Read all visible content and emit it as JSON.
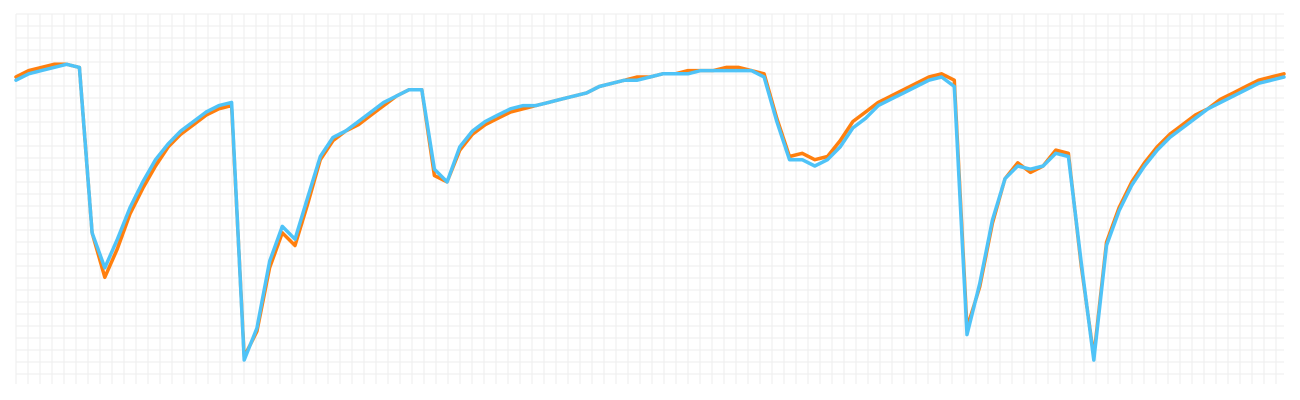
{
  "chart_data": {
    "type": "line",
    "grid": true,
    "legend": "none",
    "xlabel": "",
    "ylabel": "",
    "x": [
      0,
      1,
      2,
      3,
      4,
      5,
      6,
      7,
      8,
      9,
      10,
      11,
      12,
      13,
      14,
      15,
      16,
      17,
      18,
      19,
      20,
      21,
      22,
      23,
      24,
      25,
      26,
      27,
      28,
      29,
      30,
      31,
      32,
      33,
      34,
      35,
      36,
      37,
      38,
      39,
      40,
      41,
      42,
      43,
      44,
      45,
      46,
      47,
      48,
      49,
      50,
      51,
      52,
      53,
      54,
      55,
      56,
      57,
      58,
      59,
      60,
      61,
      62,
      63,
      64,
      65,
      66,
      67,
      68,
      69,
      70,
      71,
      72,
      73,
      74,
      75,
      76,
      77,
      78,
      79,
      80,
      81,
      82,
      83,
      84,
      85,
      86,
      87,
      88,
      89,
      90,
      91,
      92,
      93,
      94,
      95,
      96,
      97,
      98,
      99,
      100
    ],
    "xlim": [
      0,
      100
    ],
    "ylim": [
      0,
      100
    ],
    "series": [
      {
        "color": "#ff7f0e",
        "values": [
          89,
          91,
          92,
          93,
          93,
          92,
          40,
          26,
          35,
          46,
          54,
          61,
          67,
          71,
          74,
          77,
          79,
          80,
          1,
          9,
          29,
          40,
          36,
          49,
          63,
          69,
          72,
          74,
          77,
          80,
          83,
          85,
          85,
          58,
          56,
          66,
          71,
          74,
          76,
          78,
          79,
          80,
          81,
          82,
          83,
          84,
          86,
          87,
          88,
          89,
          89,
          90,
          90,
          91,
          91,
          91,
          92,
          92,
          91,
          90,
          76,
          64,
          65,
          63,
          64,
          69,
          75,
          78,
          81,
          83,
          85,
          87,
          89,
          90,
          88,
          10,
          23,
          43,
          57,
          62,
          59,
          61,
          66,
          65,
          30,
          1,
          37,
          48,
          56,
          62,
          67,
          71,
          74,
          77,
          79,
          82,
          84,
          86,
          88,
          89,
          90
        ]
      },
      {
        "color": "#4fc3f7",
        "values": [
          88,
          90,
          91,
          92,
          93,
          92,
          40,
          29,
          38,
          48,
          56,
          63,
          68,
          72,
          75,
          78,
          80,
          81,
          0,
          10,
          31,
          42,
          38,
          51,
          64,
          70,
          72,
          75,
          78,
          81,
          83,
          85,
          85,
          60,
          56,
          67,
          72,
          75,
          77,
          79,
          80,
          80,
          81,
          82,
          83,
          84,
          86,
          87,
          88,
          88,
          89,
          90,
          90,
          90,
          91,
          91,
          91,
          91,
          91,
          89,
          75,
          63,
          63,
          61,
          63,
          67,
          73,
          76,
          80,
          82,
          84,
          86,
          88,
          89,
          86,
          8,
          24,
          44,
          57,
          61,
          60,
          61,
          65,
          64,
          31,
          0,
          36,
          47,
          55,
          61,
          66,
          70,
          73,
          76,
          79,
          81,
          83,
          85,
          87,
          88,
          89
        ]
      }
    ]
  }
}
